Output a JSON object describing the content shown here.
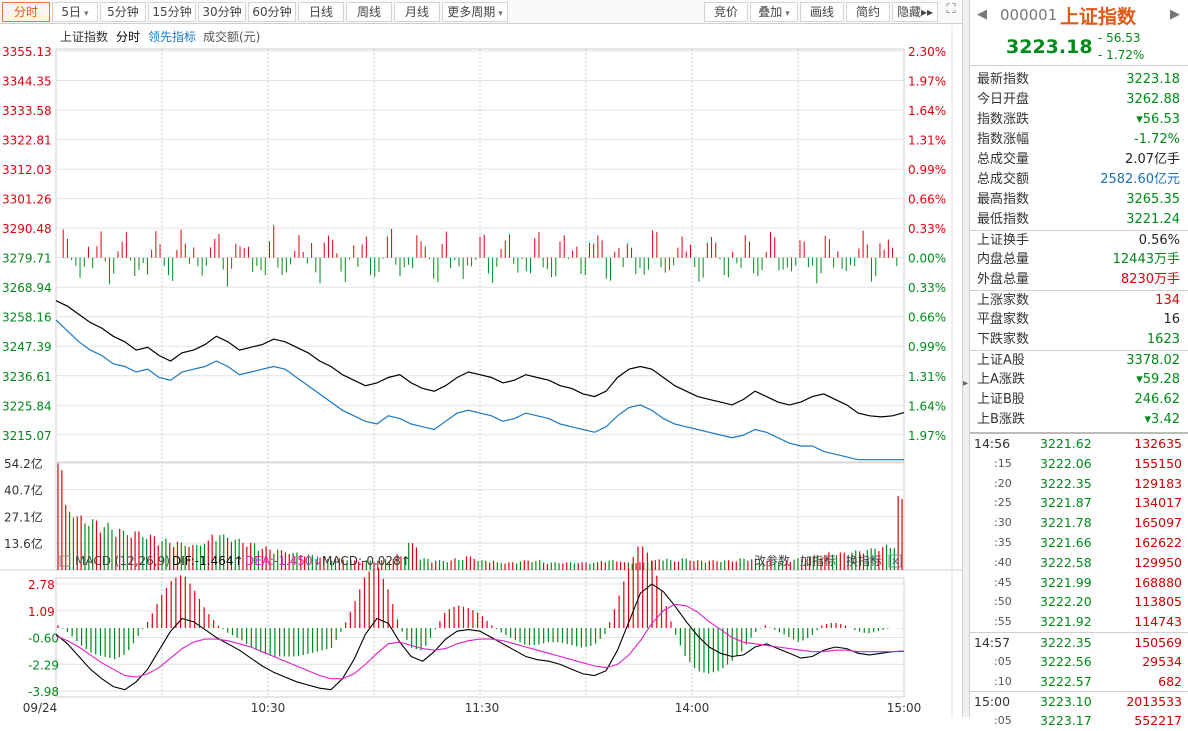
{
  "toolbar": {
    "left": [
      {
        "label": "分时",
        "active": true
      },
      {
        "label": "5日",
        "dropdown": true
      },
      {
        "label": "5分钟"
      },
      {
        "label": "15分钟"
      },
      {
        "label": "30分钟"
      },
      {
        "label": "60分钟"
      },
      {
        "label": "日线"
      },
      {
        "label": "周线"
      },
      {
        "label": "月线"
      },
      {
        "label": "更多周期",
        "dropdown": true
      }
    ],
    "right": [
      {
        "label": "竞价"
      },
      {
        "label": "叠加",
        "dropdown": true
      },
      {
        "label": "画线"
      },
      {
        "label": "简约"
      },
      {
        "label": "隐藏",
        "arrows": "▸▸"
      }
    ],
    "fullscreen_icon": "expand-icon"
  },
  "chart_legend": {
    "name": "上证指数",
    "mode": "分时",
    "leading": "领先指标",
    "amount": "成交额(元)"
  },
  "price_axis": {
    "left": [
      "3355.13",
      "3344.35",
      "3333.58",
      "3322.81",
      "3312.03",
      "3301.26",
      "3290.48",
      "3279.71",
      "3268.94",
      "3258.16",
      "3247.39",
      "3236.61",
      "3225.84",
      "3215.07"
    ],
    "right": [
      "2.30%",
      "1.97%",
      "1.64%",
      "1.31%",
      "0.99%",
      "0.66%",
      "0.33%",
      "0.00%",
      "0.33%",
      "0.66%",
      "0.99%",
      "1.31%",
      "1.64%",
      "1.97%"
    ]
  },
  "volume_axis": [
    "54.2亿",
    "40.7亿",
    "27.1亿",
    "13.6亿"
  ],
  "macd": {
    "title": "MACD (12,26,9)",
    "dif": "DIF:-1.464",
    "dea": "DEA:-1.450",
    "macd": "MACD:-0.028",
    "dif_arrow": "↑",
    "dea_arrow": "↓",
    "macd_arrow": "↑",
    "actions": [
      "改参数",
      "加指标",
      "换指标"
    ],
    "axis": [
      "2.78",
      "1.09",
      "-0.60",
      "-2.29",
      "-3.98"
    ]
  },
  "time_axis": [
    "09/24",
    "10:30",
    "11:30",
    "14:00",
    "15:00"
  ],
  "colors": {
    "up": "#e0000e",
    "down": "#008a1a",
    "index": "#000000",
    "leading": "#1a78c2",
    "dif": "#000000",
    "dea": "#e020c8",
    "grid": "#e2e2e2"
  },
  "chart_data": {
    "type": "line",
    "series": [
      {
        "name": "上证指数",
        "values": [
          3264,
          3262,
          3259,
          3256,
          3254,
          3251,
          3249,
          3246,
          3247,
          3244,
          3242,
          3245,
          3246,
          3248,
          3251,
          3249,
          3246,
          3247,
          3248,
          3250,
          3249,
          3247,
          3245,
          3242,
          3240,
          3237,
          3235,
          3233,
          3234,
          3236,
          3237,
          3234,
          3232,
          3231,
          3233,
          3236,
          3238,
          3237,
          3236,
          3234,
          3235,
          3237,
          3236,
          3235,
          3233,
          3232,
          3230,
          3229,
          3231,
          3236,
          3239,
          3240,
          3239,
          3236,
          3233,
          3231,
          3229,
          3228,
          3227,
          3226,
          3228,
          3231,
          3229,
          3227,
          3226,
          3227,
          3229,
          3230,
          3228,
          3226,
          3223,
          3222,
          3221.62,
          3222,
          3223.18
        ]
      },
      {
        "name": "领先指标",
        "values": [
          3257,
          3253,
          3249,
          3246,
          3244,
          3241,
          3240,
          3238,
          3239,
          3236,
          3235,
          3238,
          3239,
          3240,
          3242,
          3240,
          3237,
          3238,
          3239,
          3240,
          3239,
          3236,
          3233,
          3230,
          3227,
          3224,
          3222,
          3220,
          3219,
          3222,
          3221,
          3219,
          3218,
          3217,
          3220,
          3223,
          3224,
          3223,
          3222,
          3220,
          3221,
          3223,
          3222,
          3221,
          3219,
          3218,
          3217,
          3216,
          3218,
          3222,
          3225,
          3226,
          3224,
          3221,
          3219,
          3218,
          3217,
          3216,
          3215,
          3214,
          3215,
          3217,
          3216,
          3214,
          3212,
          3211,
          3211,
          3209,
          3208,
          3207,
          3206,
          3206,
          3206,
          3206,
          3206
        ]
      }
    ],
    "ylim": [
      3204.3,
      3355.13
    ],
    "volume_values": [
      54,
      33,
      28,
      26,
      24,
      22,
      20,
      20,
      18,
      16,
      15,
      14,
      13,
      15,
      19,
      18,
      16,
      14,
      12,
      11,
      10,
      9,
      8,
      7,
      6,
      6,
      5,
      5,
      5,
      6,
      8,
      14,
      6,
      5,
      5,
      6,
      7,
      5,
      5,
      4,
      4,
      5,
      5,
      4,
      4,
      4,
      4,
      4,
      5,
      5,
      4,
      4,
      5,
      6,
      5,
      6,
      5,
      5,
      5,
      5,
      6,
      6,
      5,
      5,
      5,
      6,
      7,
      8,
      9,
      9,
      10,
      11,
      12,
      13,
      38
    ],
    "volume_ylim": [
      0,
      54.2
    ],
    "macd_dif": [
      -0.4,
      -1.0,
      -1.8,
      -2.6,
      -3.2,
      -3.7,
      -3.9,
      -3.4,
      -2.6,
      -1.4,
      -0.2,
      0.6,
      0.4,
      -0.1,
      -0.6,
      -1.0,
      -1.4,
      -1.9,
      -2.4,
      -2.8,
      -3.1,
      -3.4,
      -3.6,
      -3.8,
      -3.9,
      -3.2,
      -2.0,
      -0.4,
      0.6,
      0.3,
      -0.9,
      -1.8,
      -2.1,
      -1.5,
      -0.7,
      -0.2,
      -0.1,
      -0.2,
      -0.6,
      -1.0,
      -1.4,
      -1.8,
      -2.0,
      -2.1,
      -2.3,
      -2.6,
      -2.9,
      -3.0,
      -2.7,
      -1.4,
      0.4,
      2.2,
      2.78,
      2.3,
      1.4,
      0.4,
      -0.5,
      -1.2,
      -1.6,
      -1.8,
      -1.7,
      -1.2,
      -1.0,
      -1.3,
      -1.6,
      -1.9,
      -1.8,
      -1.4,
      -1.2,
      -1.3,
      -1.6,
      -1.7,
      -1.6,
      -1.5,
      -1.464
    ],
    "macd_dea": [
      -0.5,
      -0.8,
      -1.2,
      -1.7,
      -2.2,
      -2.6,
      -3.0,
      -3.1,
      -2.9,
      -2.5,
      -1.9,
      -1.3,
      -0.9,
      -0.7,
      -0.7,
      -0.8,
      -1.0,
      -1.2,
      -1.5,
      -1.8,
      -2.1,
      -2.4,
      -2.7,
      -3.0,
      -3.2,
      -3.2,
      -2.9,
      -2.3,
      -1.6,
      -1.0,
      -0.9,
      -1.1,
      -1.3,
      -1.4,
      -1.3,
      -1.0,
      -0.8,
      -0.7,
      -0.7,
      -0.8,
      -1.0,
      -1.2,
      -1.4,
      -1.6,
      -1.8,
      -2.0,
      -2.2,
      -2.4,
      -2.5,
      -2.3,
      -1.7,
      -0.8,
      0.3,
      1.1,
      1.5,
      1.4,
      1.0,
      0.4,
      -0.1,
      -0.6,
      -0.9,
      -1.0,
      -1.1,
      -1.2,
      -1.3,
      -1.4,
      -1.5,
      -1.5,
      -1.4,
      -1.4,
      -1.5,
      -1.5,
      -1.5,
      -1.5,
      -1.45
    ],
    "macd_ylim": [
      -3.98,
      2.78
    ]
  },
  "panel": {
    "code": "000001",
    "name": "上证指数",
    "price": "3223.18",
    "change": "- 56.53",
    "change_pct": "- 1.72%",
    "stats": [
      {
        "label": "最新指数",
        "value": "3223.18",
        "cls": "dn"
      },
      {
        "label": "今日开盘",
        "value": "3262.88",
        "cls": "dn"
      },
      {
        "label": "指数涨跌",
        "value": "▾56.53",
        "cls": "dn"
      },
      {
        "label": "指数涨幅",
        "value": "-1.72%",
        "cls": "dn"
      },
      {
        "label": "总成交量",
        "value": "2.07亿手",
        "cls": "bk"
      },
      {
        "label": "总成交额",
        "value": "2582.60亿元",
        "cls": "bl"
      },
      {
        "label": "最高指数",
        "value": "3265.35",
        "cls": "dn"
      },
      {
        "label": "最低指数",
        "value": "3221.24",
        "cls": "dn"
      },
      {
        "label": "上证换手",
        "value": "0.56%",
        "cls": "bk",
        "sep": true
      },
      {
        "label": "内盘总量",
        "value": "12443万手",
        "cls": "dn"
      },
      {
        "label": "外盘总量",
        "value": "8230万手",
        "cls": "up"
      },
      {
        "label": "上涨家数",
        "value": "134",
        "cls": "up",
        "sep": true
      },
      {
        "label": "平盘家数",
        "value": "16",
        "cls": "bk"
      },
      {
        "label": "下跌家数",
        "value": "1623",
        "cls": "dn"
      },
      {
        "label": "上证A股",
        "value": "3378.02",
        "cls": "dn",
        "sep": true
      },
      {
        "label": "上A涨跌",
        "value": "▾59.28",
        "cls": "dn"
      },
      {
        "label": "上证B股",
        "value": "246.62",
        "cls": "dn"
      },
      {
        "label": "上B涨跌",
        "value": "▾3.42",
        "cls": "dn"
      }
    ],
    "ticks": [
      {
        "t": "14:56",
        "p": "3221.62",
        "v": "132635",
        "sep": true
      },
      {
        "t": ":15",
        "p": "3222.06",
        "v": "155150"
      },
      {
        "t": ":20",
        "p": "3222.35",
        "v": "129183"
      },
      {
        "t": ":25",
        "p": "3221.87",
        "v": "134017"
      },
      {
        "t": ":30",
        "p": "3221.78",
        "v": "165097"
      },
      {
        "t": ":35",
        "p": "3221.66",
        "v": "162622"
      },
      {
        "t": ":40",
        "p": "3222.58",
        "v": "129950"
      },
      {
        "t": ":45",
        "p": "3221.99",
        "v": "168880"
      },
      {
        "t": ":50",
        "p": "3222.20",
        "v": "113805"
      },
      {
        "t": ":55",
        "p": "3221.92",
        "v": "114743"
      },
      {
        "t": "14:57",
        "p": "3222.35",
        "v": "150569",
        "sep": true
      },
      {
        "t": ":05",
        "p": "3222.56",
        "v": "29534"
      },
      {
        "t": ":10",
        "p": "3222.57",
        "v": "682"
      },
      {
        "t": "15:00",
        "p": "3223.10",
        "v": "2013533",
        "sep": true
      },
      {
        "t": ":05",
        "p": "3223.17",
        "v": "552217"
      }
    ]
  }
}
